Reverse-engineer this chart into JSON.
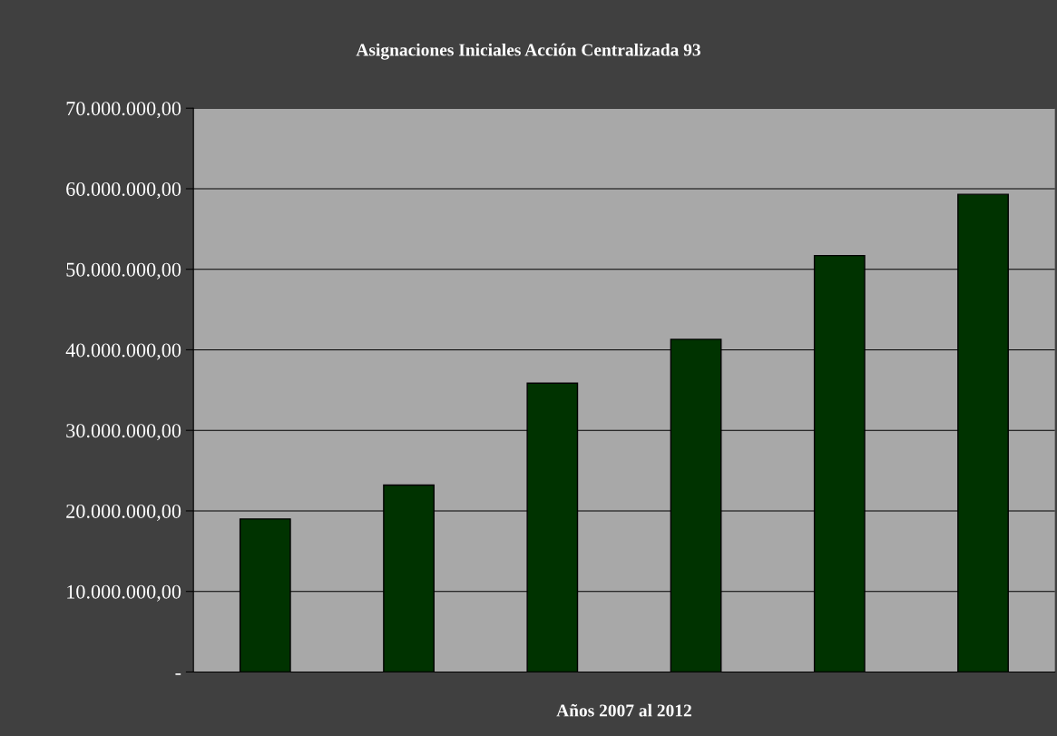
{
  "chart_data": {
    "type": "bar",
    "title": "Asignaciones Iniciales Acción Centralizada 93",
    "xlabel": "Años 2007 al 2012",
    "categories": [
      null,
      null,
      null,
      null,
      null,
      null
    ],
    "values": [
      19000000,
      23200000,
      35850000,
      41300000,
      51700000,
      59300000
    ],
    "color": "#003300",
    "ylim": [
      0,
      70000000
    ],
    "yticks": [
      {
        "value": 0,
        "label": "-"
      },
      {
        "value": 10000000,
        "label": "10.000.000,00"
      },
      {
        "value": 20000000,
        "label": "20.000.000,00"
      },
      {
        "value": 30000000,
        "label": "30.000.000,00"
      },
      {
        "value": 40000000,
        "label": "40.000.000,00"
      },
      {
        "value": 50000000,
        "label": "50.000.000,00"
      },
      {
        "value": 60000000,
        "label": "60.000.000,00"
      },
      {
        "value": 70000000,
        "label": "70.000.000,00"
      }
    ],
    "grid": "y",
    "legend": false
  }
}
